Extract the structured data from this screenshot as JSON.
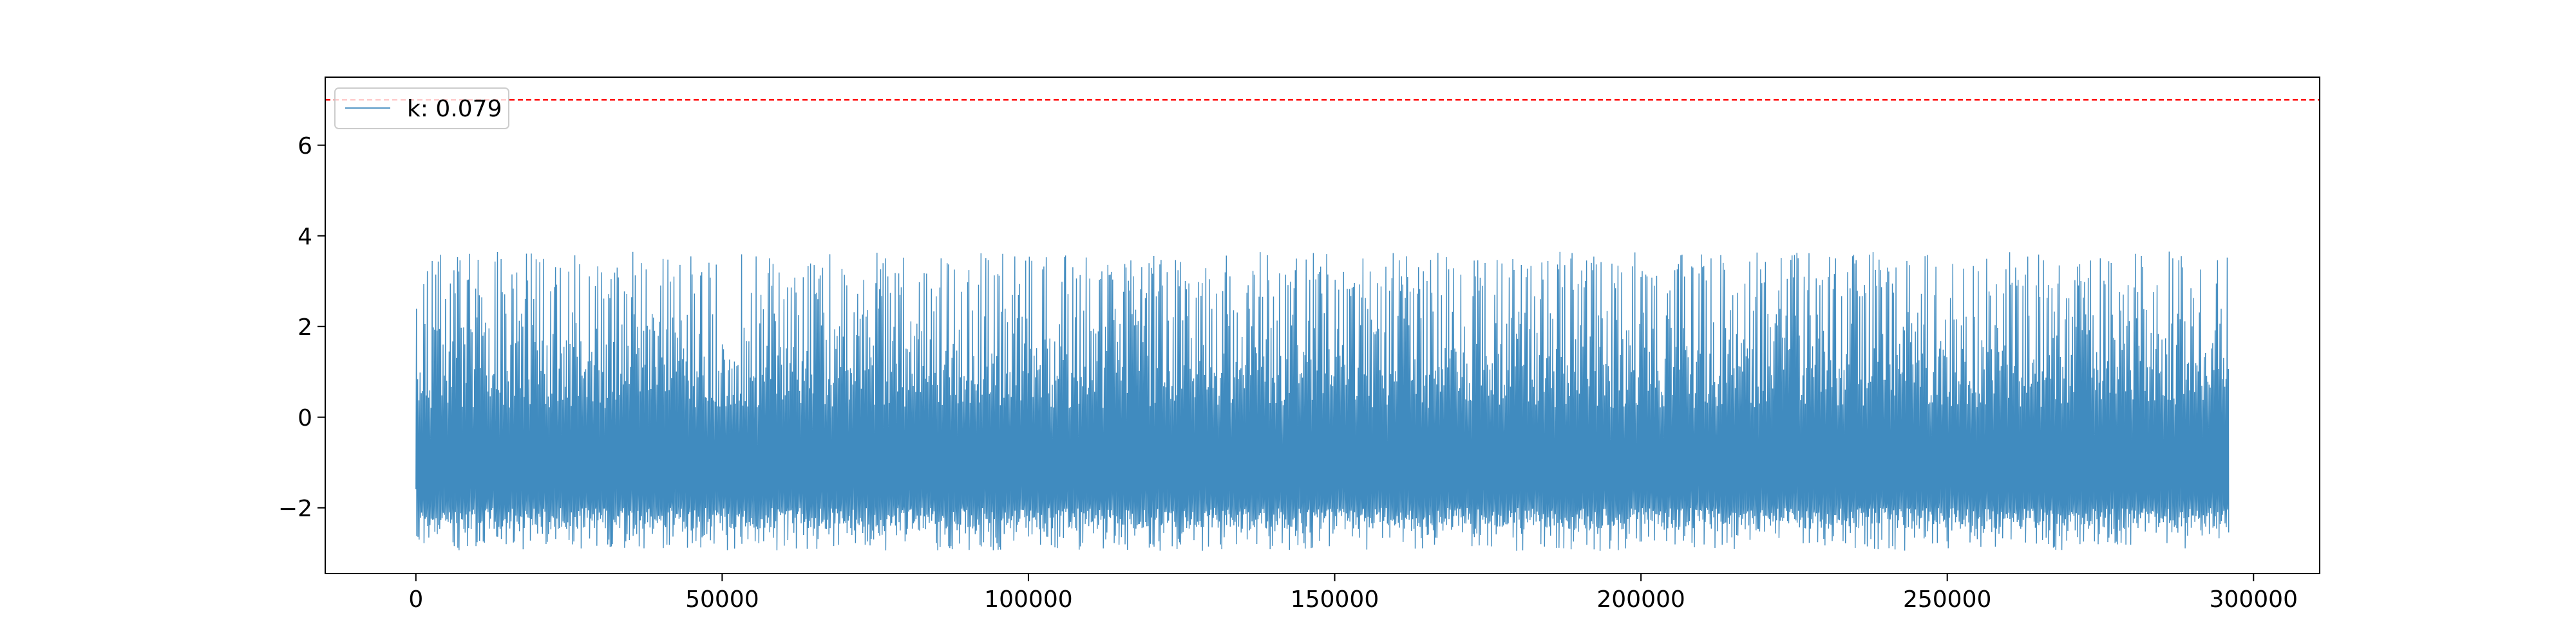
{
  "chart_data": {
    "type": "line",
    "title": "",
    "xlabel": "",
    "ylabel": "",
    "xlim": [
      -14800,
      310800
    ],
    "ylim": [
      -3.45,
      7.5
    ],
    "grid": false,
    "legend": {
      "placement": "top-left",
      "entries": [
        {
          "label": "k: 0.079"
        }
      ]
    },
    "x_ticks": [
      0,
      50000,
      100000,
      150000,
      200000,
      250000,
      300000
    ],
    "x_tick_labels": [
      "0",
      "50000",
      "100000",
      "150000",
      "200000",
      "250000",
      "300000"
    ],
    "y_ticks": [
      -2,
      0,
      2,
      4,
      6
    ],
    "y_tick_labels": [
      "−2",
      "0",
      "2",
      "4",
      "6"
    ],
    "threshold_line": {
      "y": 7.0,
      "color": "#ff0000",
      "style": "dashed"
    },
    "series": [
      {
        "name": "k: 0.079",
        "color": "#1f77b4",
        "x_start": 0,
        "x_end": 296000,
        "baseline": [
          -2.0,
          -1.4
        ],
        "y_min": -2.95,
        "y_max": 3.7,
        "typical_peak": [
          0.5,
          3.6
        ]
      }
    ]
  },
  "colors": {
    "line": "#1f77b4",
    "threshold": "#ff0000",
    "axes": "#000000",
    "legend_border": "#cccccc"
  }
}
